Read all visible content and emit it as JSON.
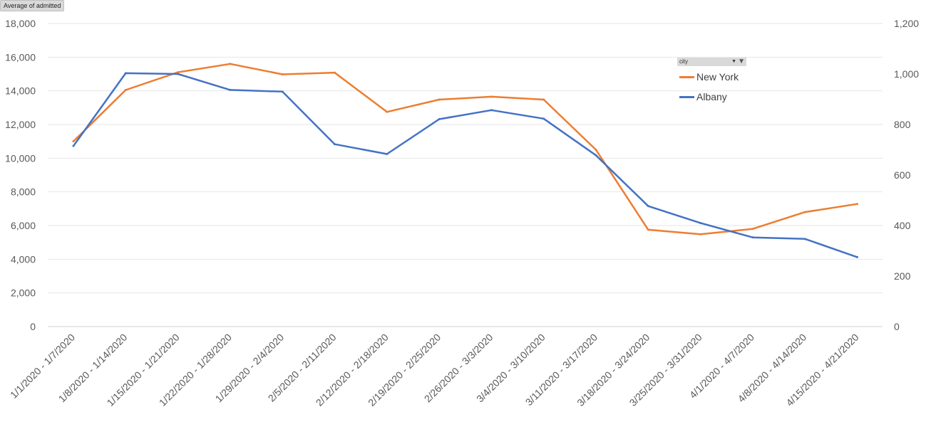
{
  "pivot_button": {
    "label": "Average of admitted"
  },
  "filter": {
    "label": "city"
  },
  "colors": {
    "new_york": "#ED7D31",
    "albany": "#4472C4",
    "grid": "#e6e6e6",
    "text": "#595959"
  },
  "chart_data": {
    "type": "line",
    "title": "",
    "xlabel": "",
    "ylabel": "",
    "categories": [
      "1/1/2020 - 1/7/2020",
      "1/8/2020 - 1/14/2020",
      "1/15/2020 - 1/21/2020",
      "1/22/2020 - 1/28/2020",
      "1/29/2020 - 2/4/2020",
      "2/5/2020 - 2/11/2020",
      "2/12/2020 - 2/18/2020",
      "2/19/2020 - 2/25/2020",
      "2/26/2020 - 3/3/2020",
      "3/4/2020 - 3/10/2020",
      "3/11/2020 - 3/17/2020",
      "3/18/2020 - 3/24/2020",
      "3/25/2020 - 3/31/2020",
      "4/1/2020 - 4/7/2020",
      "4/8/2020 - 4/14/2020",
      "4/15/2020 - 4/21/2020"
    ],
    "y_left": {
      "min": 0,
      "max": 18000,
      "step": 2000,
      "ticks": [
        "0",
        "2,000",
        "4,000",
        "6,000",
        "8,000",
        "10,000",
        "12,000",
        "14,000",
        "16,000",
        "18,000"
      ]
    },
    "y_right": {
      "min": 0,
      "max": 1200,
      "step": 200,
      "ticks": [
        "0",
        "200",
        "400",
        "600",
        "800",
        "1,000",
        "1,200"
      ]
    },
    "series": [
      {
        "name": "New York",
        "axis": "left",
        "values": [
          11000,
          14050,
          15100,
          15600,
          14980,
          15080,
          12750,
          13480,
          13650,
          13480,
          10500,
          5750,
          5480,
          5800,
          6800,
          7280
        ]
      },
      {
        "name": "Albany",
        "axis": "right",
        "values": [
          715,
          1003,
          1000,
          937,
          930,
          722,
          683,
          821,
          857,
          823,
          678,
          477,
          410,
          353,
          347,
          275
        ]
      }
    ],
    "legend_position": "top-right"
  }
}
